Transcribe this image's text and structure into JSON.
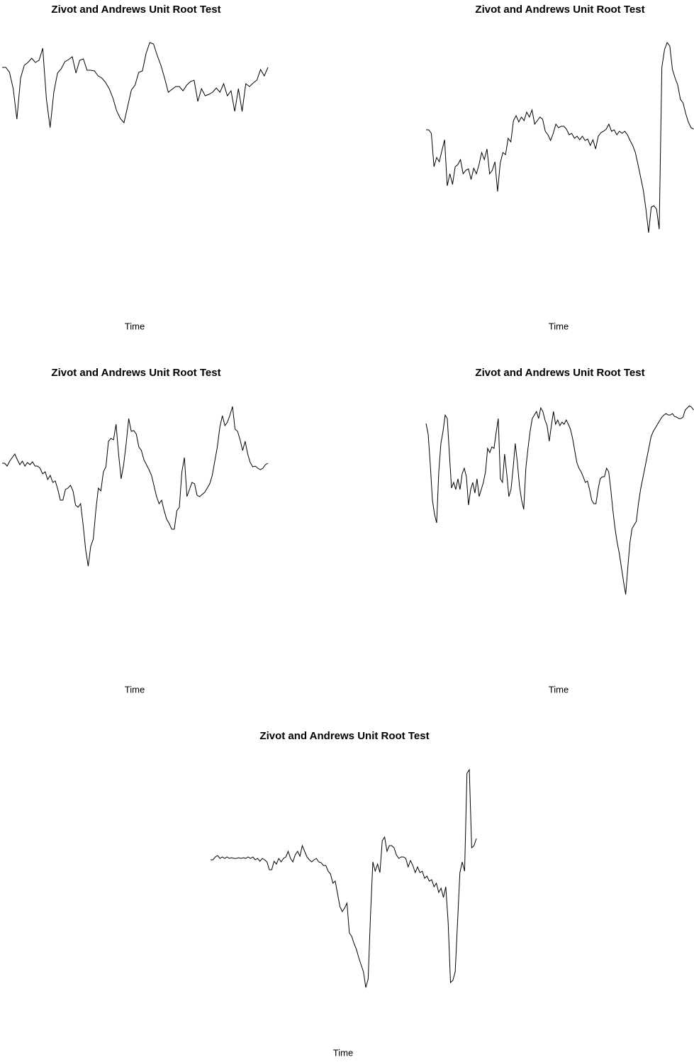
{
  "chart_data": [
    {
      "type": "line",
      "title": "Zivot and Andrews Unit Root Test",
      "xlabel": "Time",
      "color": "#000000",
      "ylim": [
        0,
        380
      ],
      "values": [
        345,
        345,
        338,
        315,
        272,
        330,
        348,
        352,
        358,
        352,
        355,
        372,
        300,
        260,
        310,
        337,
        343,
        353,
        356,
        360,
        337,
        355,
        357,
        341,
        341,
        340,
        333,
        330,
        324,
        315,
        302,
        284,
        273,
        267,
        290,
        313,
        320,
        338,
        340,
        365,
        380,
        378,
        362,
        348,
        330,
        310,
        314,
        318,
        318,
        312,
        320,
        325,
        327,
        297,
        315,
        305,
        307,
        310,
        316,
        310,
        322,
        305,
        312,
        283,
        315,
        283,
        322,
        318,
        323,
        327,
        342,
        333,
        345
      ]
    },
    {
      "type": "line",
      "title": "Zivot and Andrews Unit Root Test",
      "xlabel": "Time",
      "color": "#000000",
      "ylim": [
        0,
        380
      ],
      "values": [
        257,
        257,
        252,
        205,
        218,
        212,
        228,
        243,
        178,
        195,
        180,
        205,
        208,
        215,
        195,
        200,
        202,
        187,
        203,
        195,
        208,
        225,
        215,
        230,
        195,
        200,
        212,
        170,
        210,
        225,
        222,
        245,
        240,
        270,
        277,
        268,
        275,
        270,
        282,
        275,
        285,
        265,
        270,
        275,
        272,
        255,
        250,
        242,
        252,
        265,
        260,
        262,
        262,
        258,
        250,
        252,
        245,
        248,
        243,
        248,
        242,
        244,
        235,
        243,
        230,
        248,
        253,
        255,
        258,
        265,
        255,
        257,
        250,
        255,
        252,
        255,
        250,
        242,
        235,
        225,
        208,
        190,
        172,
        145,
        112,
        148,
        150,
        145,
        117,
        345,
        370,
        380,
        375,
        342,
        330,
        320,
        300,
        295,
        280,
        268,
        260,
        258
      ]
    },
    {
      "type": "line",
      "title": "Zivot and Andrews Unit Root Test",
      "xlabel": "Time",
      "color": "#000000",
      "ylim": [
        0,
        380
      ],
      "values": [
        299,
        299,
        295,
        302,
        307,
        312,
        304,
        297,
        302,
        295,
        300,
        297,
        301,
        295,
        295,
        292,
        284,
        287,
        276,
        282,
        272,
        274,
        262,
        247,
        247,
        262,
        264,
        268,
        260,
        240,
        237,
        242,
        212,
        177,
        154,
        182,
        192,
        232,
        264,
        260,
        287,
        294,
        330,
        334,
        332,
        354,
        312,
        277,
        297,
        327,
        362,
        344,
        345,
        340,
        322,
        317,
        304,
        297,
        290,
        282,
        267,
        252,
        242,
        247,
        232,
        220,
        214,
        206,
        206,
        232,
        237,
        287,
        307,
        252,
        262,
        272,
        270,
        254,
        252,
        255,
        258,
        264,
        270,
        282,
        302,
        322,
        350,
        366,
        352,
        357,
        367,
        379,
        347,
        344,
        332,
        317,
        330,
        312,
        300,
        294,
        295,
        292,
        290,
        292,
        297,
        299
      ]
    },
    {
      "type": "line",
      "title": "Zivot and Andrews Unit Root Test",
      "xlabel": "Time",
      "color": "#000000",
      "ylim": [
        0,
        380
      ],
      "values": [
        355,
        340,
        297,
        247,
        227,
        215,
        287,
        327,
        344,
        367,
        362,
        312,
        264,
        272,
        262,
        277,
        262,
        284,
        292,
        280,
        240,
        262,
        272,
        257,
        277,
        252,
        262,
        272,
        287,
        320,
        314,
        322,
        320,
        342,
        362,
        277,
        272,
        312,
        284,
        252,
        262,
        292,
        327,
        300,
        267,
        247,
        234,
        292,
        320,
        344,
        362,
        367,
        372,
        362,
        377,
        372,
        360,
        352,
        330,
        352,
        372,
        354,
        360,
        352,
        357,
        354,
        360,
        354,
        347,
        334,
        317,
        300,
        292,
        287,
        280,
        272,
        274,
        262,
        247,
        242,
        242,
        262,
        277,
        280,
        280,
        292,
        287,
        262,
        232,
        207,
        187,
        172,
        152,
        132,
        114,
        152,
        187,
        207,
        212,
        217,
        242,
        262,
        277,
        292,
        307,
        322,
        337,
        344,
        349,
        354,
        359,
        364,
        367,
        369,
        367,
        367,
        369,
        365,
        364,
        362,
        362,
        364,
        374,
        377,
        380,
        378,
        374
      ]
    },
    {
      "type": "line",
      "title": "Zivot and Andrews Unit Root Test",
      "xlabel": "Time",
      "color": "#000000",
      "ylim": [
        0,
        380
      ],
      "values": [
        252,
        252,
        256,
        258,
        254,
        256,
        254,
        256,
        254,
        255,
        254,
        254,
        255,
        254,
        255,
        254,
        256,
        254,
        256,
        252,
        254,
        250,
        254,
        252,
        249,
        238,
        238,
        250,
        246,
        254,
        249,
        254,
        256,
        264,
        254,
        249,
        259,
        264,
        257,
        272,
        264,
        256,
        252,
        249,
        252,
        254,
        249,
        248,
        244,
        244,
        236,
        232,
        219,
        222,
        204,
        186,
        179,
        184,
        191,
        149,
        144,
        134,
        126,
        114,
        104,
        94,
        72,
        84,
        174,
        249,
        236,
        246,
        234,
        279,
        284,
        264,
        272,
        272,
        269,
        259,
        254,
        256,
        256,
        254,
        242,
        251,
        244,
        234,
        242,
        234,
        236,
        226,
        229,
        222,
        224,
        214,
        219,
        206,
        212,
        199,
        214,
        164,
        79,
        82,
        94,
        164,
        234,
        249,
        236,
        374,
        379,
        269,
        272,
        282
      ]
    }
  ]
}
